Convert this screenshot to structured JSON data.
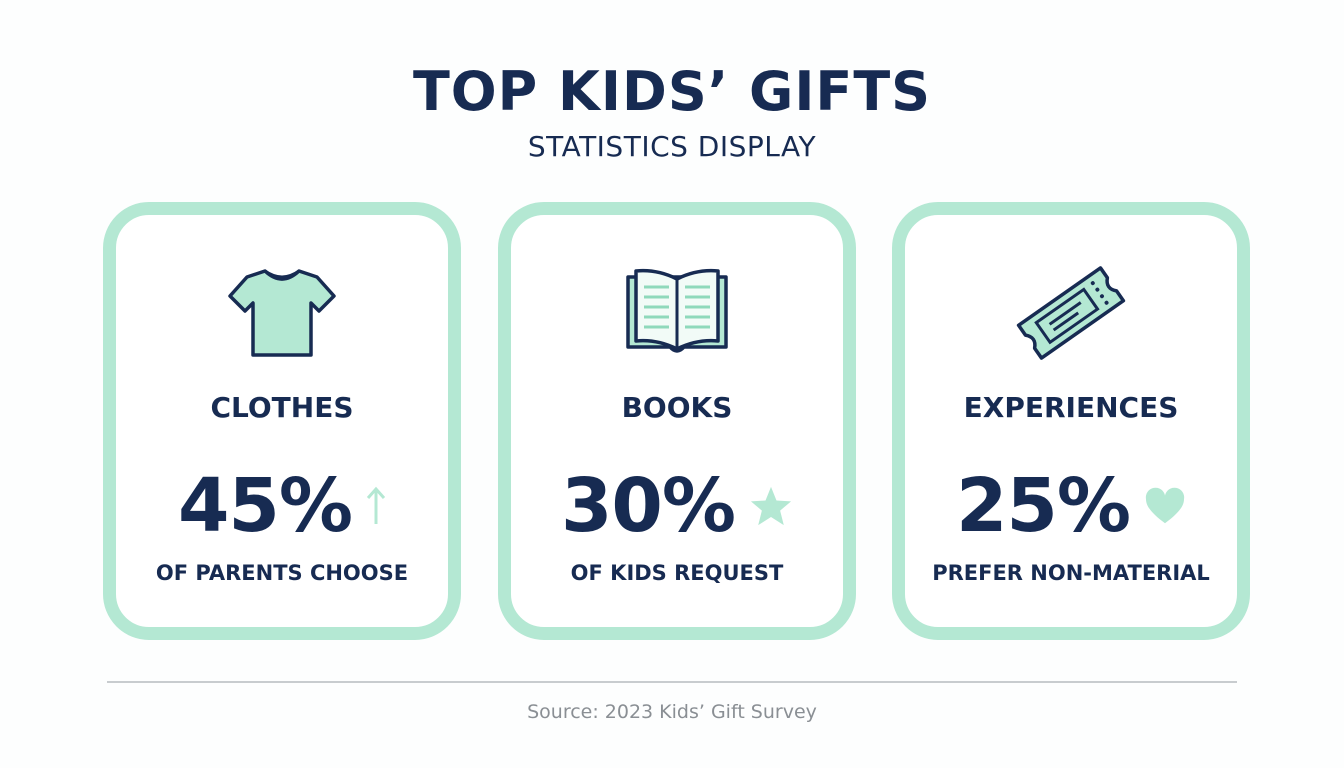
{
  "header": {
    "title": "TOP KIDS’ GIFTS",
    "subtitle": "STATISTICS DISPLAY"
  },
  "colors": {
    "navy": "#172b52",
    "mint": "#b4e8d3"
  },
  "cards": [
    {
      "icon": "t-shirt-icon",
      "label": "CLOTHES",
      "value": "45%",
      "badge_icon": "arrow-up-icon",
      "caption": "OF PARENTS CHOOSE"
    },
    {
      "icon": "open-book-icon",
      "label": "BOOKS",
      "value": "30%",
      "badge_icon": "star-icon",
      "caption": "OF KIDS REQUEST"
    },
    {
      "icon": "ticket-icon",
      "label": "EXPERIENCES",
      "value": "25%",
      "badge_icon": "heart-icon",
      "caption": "PREFER NON-MATERIAL"
    }
  ],
  "footer": {
    "source": "Source: 2023 Kids’ Gift Survey"
  }
}
